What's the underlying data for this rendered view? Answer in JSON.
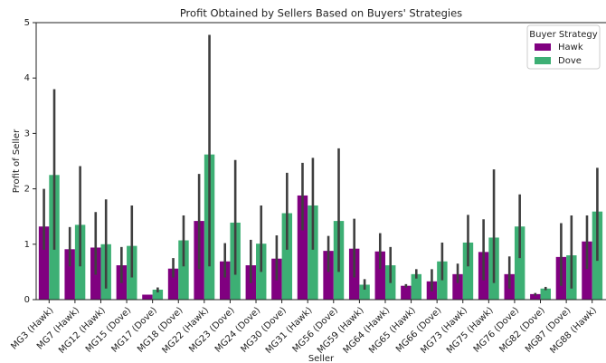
{
  "chart_data": {
    "type": "bar",
    "title": "Profit Obtained by Sellers Based on Buyers' Strategies",
    "x_label": "Seller",
    "y_label": "Profit of Seller",
    "categories": [
      "MG3 (Hawk)",
      "MG7 (Hawk)",
      "MG12 (Hawk)",
      "MG15 (Dove)",
      "MG17 (Dove)",
      "MG18 (Dove)",
      "MG22 (Hawk)",
      "MG23 (Dove)",
      "MG24 (Dove)",
      "MG30 (Dove)",
      "MG31 (Hawk)",
      "MG56 (Dove)",
      "MG59 (Hawk)",
      "MG64 (Hawk)",
      "MG65 (Hawk)",
      "MG66 (Dove)",
      "MG73 (Hawk)",
      "MG75 (Hawk)",
      "MG76 (Dove)",
      "MG82 (Dove)",
      "MG87 (Dove)",
      "MG88 (Hawk)"
    ],
    "series": [
      {
        "name": "Hawk",
        "color": "#800080",
        "values": [
          1.32,
          0.91,
          0.94,
          0.62,
          0.09,
          0.56,
          1.42,
          0.69,
          0.62,
          0.74,
          1.88,
          0.88,
          0.92,
          0.87,
          0.25,
          0.33,
          0.46,
          0.86,
          0.46,
          0.1,
          0.77,
          1.05
        ],
        "ci_low": [
          0.9,
          0.6,
          0.45,
          0.3,
          0.09,
          0.4,
          0.55,
          0.4,
          0.3,
          0.35,
          1.25,
          0.5,
          0.4,
          0.55,
          0.22,
          0.15,
          0.3,
          0.35,
          0.2,
          0.07,
          0.25,
          0.55
        ],
        "ci_high": [
          2.0,
          1.31,
          1.58,
          0.95,
          0.09,
          0.75,
          2.27,
          1.02,
          1.08,
          1.16,
          2.47,
          1.15,
          1.46,
          1.2,
          0.28,
          0.55,
          0.65,
          1.45,
          0.78,
          0.12,
          1.38,
          1.52
        ]
      },
      {
        "name": "Dove",
        "color": "#3daf74",
        "values": [
          2.25,
          1.35,
          1.0,
          0.97,
          0.18,
          1.07,
          2.62,
          1.39,
          1.01,
          1.56,
          1.7,
          1.42,
          0.27,
          0.62,
          0.46,
          0.69,
          1.03,
          1.12,
          1.32,
          0.2,
          0.8,
          1.59
        ],
        "ci_low": [
          0.9,
          0.6,
          0.2,
          0.4,
          0.13,
          0.6,
          0.6,
          0.45,
          0.5,
          0.9,
          0.9,
          0.5,
          0.18,
          0.3,
          0.38,
          0.35,
          0.6,
          0.3,
          0.75,
          0.17,
          0.2,
          0.7
        ],
        "ci_high": [
          3.8,
          2.41,
          1.81,
          1.7,
          0.22,
          1.52,
          4.78,
          2.52,
          1.7,
          2.29,
          2.56,
          2.73,
          0.37,
          0.95,
          0.55,
          1.03,
          1.53,
          2.35,
          1.9,
          0.23,
          1.52,
          2.38
        ]
      }
    ],
    "legend_title": "Buyer Strategy",
    "legend": "upper right",
    "ylim": [
      0,
      5
    ],
    "yticks": [
      0,
      1,
      2,
      3,
      4,
      5
    ]
  }
}
